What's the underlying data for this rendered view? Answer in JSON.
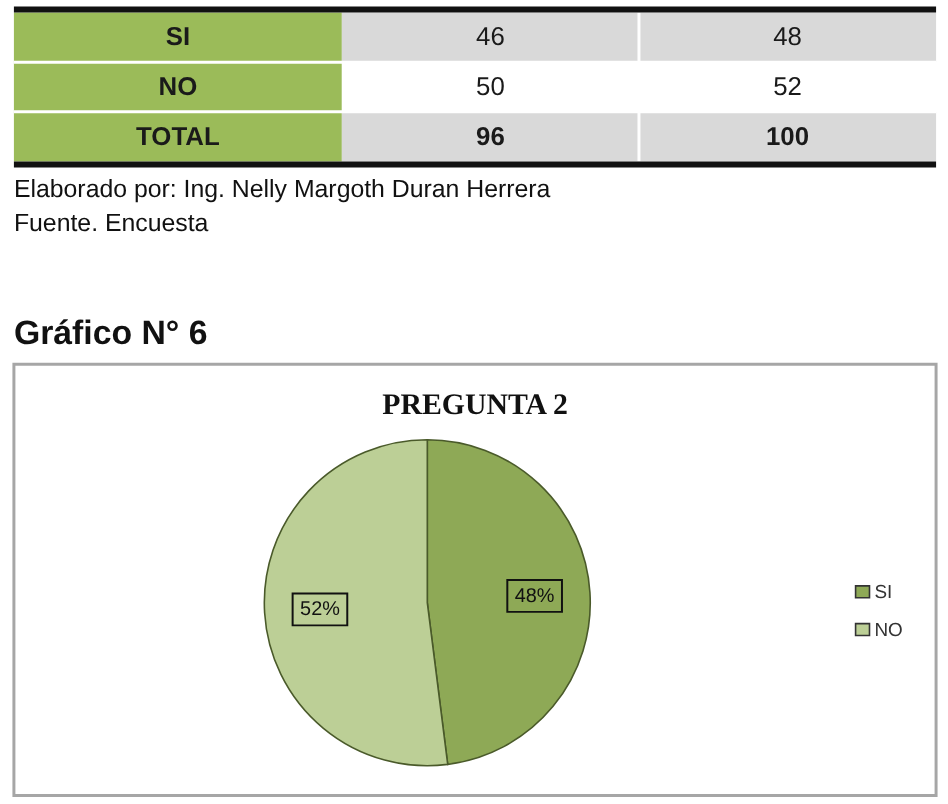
{
  "chart_data": [
    {
      "type": "other",
      "categories": [
        "SI",
        "NO",
        "TOTAL"
      ],
      "series": [
        {
          "values": [
            46,
            50,
            96
          ],
          "colors": [
            "#d9d9d9",
            "#ffffff",
            "#d9d9d9"
          ]
        },
        {
          "values": [
            48,
            52,
            100
          ],
          "colors": [
            "#d9d9d9",
            "#ffffff",
            "#d9d9d9"
          ]
        }
      ],
      "data_labels": true,
      "annotations": [
        "Elaborado por: Ing. Nelly Margoth Duran Herrera",
        "Fuente. Encuesta"
      ]
    },
    {
      "type": "pie",
      "title": "Gráfico N° 6",
      "subtitle": "PREGUNTA 2",
      "categories": [
        "SI",
        "NO"
      ],
      "values": [
        48,
        52
      ],
      "colors": [
        "#8ea956",
        "#bccf96"
      ],
      "value_labels": [
        "48%",
        "52%"
      ],
      "legend": "right"
    }
  ]
}
